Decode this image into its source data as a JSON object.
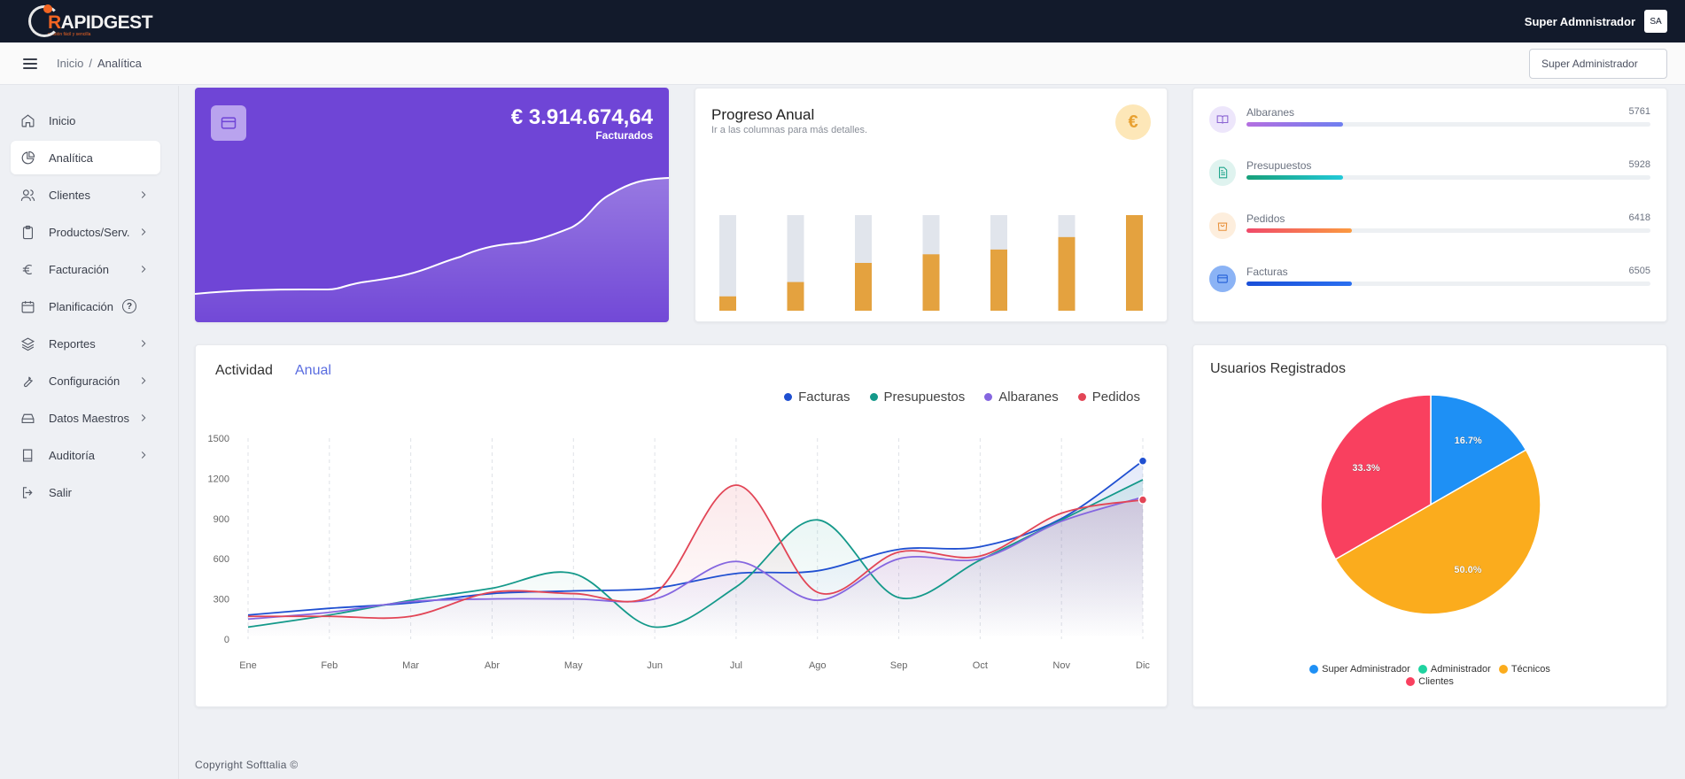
{
  "topbar": {
    "logo_text": "RAPIDGEST",
    "logo_tagline": "gestión fácil y sencilla",
    "user_name": "Super Admnistrador",
    "user_initials": "SA"
  },
  "subheader": {
    "breadcrumb": [
      "Inicio",
      "Analítica"
    ],
    "user_select": "Super Administrador"
  },
  "sidebar": {
    "items": [
      {
        "label": "Inicio",
        "icon": "home-icon",
        "has_submenu": false
      },
      {
        "label": "Analítica",
        "icon": "pie-chart-icon",
        "has_submenu": false,
        "active": true
      },
      {
        "label": "Clientes",
        "icon": "users-icon",
        "has_submenu": true
      },
      {
        "label": "Productos/Serv.",
        "icon": "clipboard-icon",
        "has_submenu": true
      },
      {
        "label": "Facturación",
        "icon": "euro-icon",
        "has_submenu": true
      },
      {
        "label": "Planificación",
        "icon": "calendar-icon",
        "has_submenu": false,
        "help": "?"
      },
      {
        "label": "Reportes",
        "icon": "layers-icon",
        "has_submenu": true
      },
      {
        "label": "Configuración",
        "icon": "wrench-icon",
        "has_submenu": true
      },
      {
        "label": "Datos Maestros",
        "icon": "database-icon",
        "has_submenu": true
      },
      {
        "label": "Auditoría",
        "icon": "book-icon",
        "has_submenu": true
      },
      {
        "label": "Salir",
        "icon": "logout-icon",
        "has_submenu": false
      }
    ]
  },
  "invoice_card": {
    "amount": "€ 3.914.674,64",
    "label": "Facturados",
    "color": "#6f45d6"
  },
  "progress_card": {
    "title": "Progreso Anual",
    "subtitle": "Ir a las columnas para más detalles.",
    "badge": "€",
    "bar_fractions": [
      0.15,
      0.3,
      0.5,
      0.59,
      0.64,
      0.77,
      1.0
    ],
    "bar_color": "#e4a23f",
    "track_color": "#e1e5ec"
  },
  "counts": [
    {
      "label": "Albaranes",
      "value": "5761",
      "fraction": 0.24,
      "icon": "book-open-icon",
      "badge_bg": "#ede6fb",
      "icon_color": "#8a63d2",
      "bar": [
        "#b46fe0",
        "#6f7ff0"
      ]
    },
    {
      "label": "Presupuestos",
      "value": "5928",
      "fraction": 0.24,
      "icon": "document-icon",
      "badge_bg": "#dff3ef",
      "icon_color": "#20a58c",
      "bar": [
        "#18a07a",
        "#22c9d8"
      ]
    },
    {
      "label": "Pedidos",
      "value": "6418",
      "fraction": 0.26,
      "icon": "bag-icon",
      "badge_bg": "#fdeedd",
      "icon_color": "#e8903a",
      "bar": [
        "#f04a6a",
        "#fb9a40"
      ]
    },
    {
      "label": "Facturas",
      "value": "6505",
      "fraction": 0.26,
      "icon": "card-icon",
      "badge_bg": "#8bb3f5",
      "icon_color": "#1f5cd8",
      "bar": [
        "#1a4fd8",
        "#2a6ff0"
      ]
    }
  ],
  "activity": {
    "title": "Actividad",
    "tab": "Anual"
  },
  "users": {
    "title": "Usuarios Registrados"
  },
  "footer": "Copyright Softtalia ©",
  "chart_data": [
    {
      "type": "line",
      "x": [
        "Ene",
        "Feb",
        "Mar",
        "Abr",
        "May",
        "Jun",
        "Jul",
        "Ago",
        "Sep",
        "Oct",
        "Nov",
        "Dic"
      ],
      "ylim": [
        0,
        1500
      ],
      "yticks": [
        0,
        300,
        600,
        900,
        1200,
        1500
      ],
      "series": [
        {
          "name": "Facturas",
          "color": "#1f4fd1",
          "values": [
            180,
            230,
            270,
            340,
            360,
            380,
            490,
            510,
            670,
            690,
            900,
            1330
          ]
        },
        {
          "name": "Presupuestos",
          "color": "#14998a",
          "values": [
            90,
            180,
            290,
            380,
            490,
            90,
            390,
            890,
            310,
            590,
            890,
            1190
          ]
        },
        {
          "name": "Albaranes",
          "color": "#8566e0",
          "values": [
            150,
            200,
            280,
            300,
            300,
            300,
            580,
            290,
            600,
            600,
            880,
            1060
          ]
        },
        {
          "name": "Pedidos",
          "color": "#e24556",
          "values": [
            170,
            170,
            170,
            350,
            340,
            340,
            1150,
            350,
            650,
            620,
            940,
            1040
          ]
        }
      ]
    },
    {
      "type": "pie",
      "categories": [
        "Super Administrador",
        "Administrador",
        "Técnicos",
        "Clientes"
      ],
      "values": [
        16.7,
        0,
        50.0,
        33.3
      ],
      "labels": [
        "16.7%",
        "",
        "50.0%",
        "33.3%"
      ],
      "colors": [
        "#1e90f5",
        "#1fd3a0",
        "#fbac1d",
        "#f9405f"
      ]
    }
  ]
}
